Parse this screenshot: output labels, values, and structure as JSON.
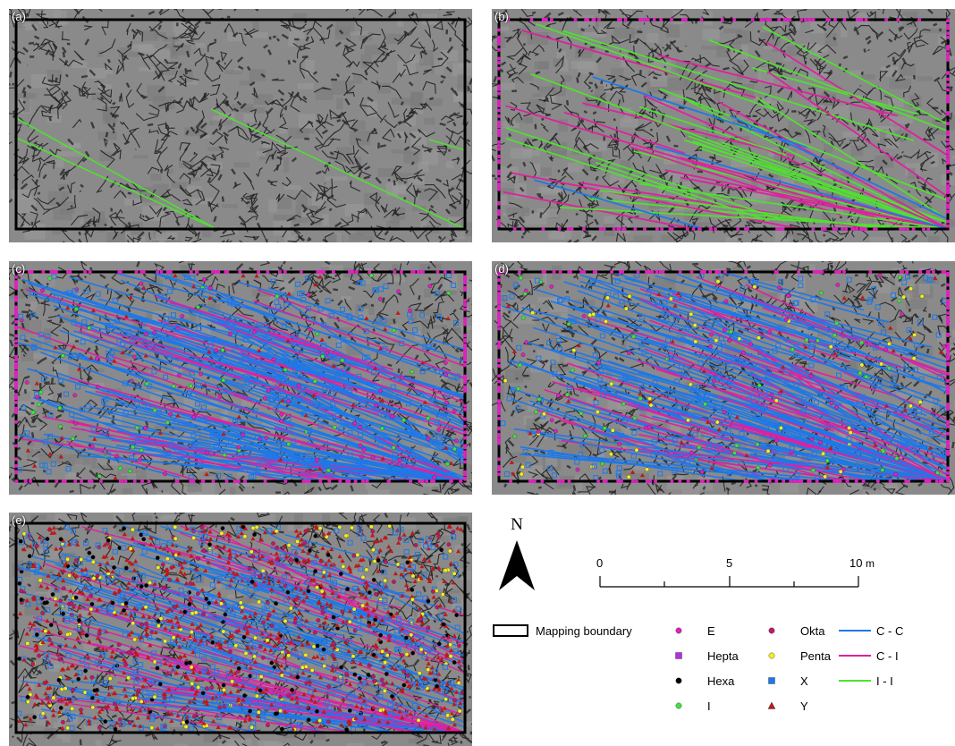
{
  "panels": [
    {
      "label": "(a)"
    },
    {
      "label": "(b)"
    },
    {
      "label": "(c)"
    },
    {
      "label": "(d)"
    },
    {
      "label": "(e)"
    }
  ],
  "north_arrow": {
    "letter": "N"
  },
  "scale_bar": {
    "labels": [
      "0",
      "5",
      "10"
    ],
    "unit": "m"
  },
  "legend": {
    "boundary": "Mapping boundary",
    "nodes": [
      {
        "label": "E",
        "color": "#e020c0",
        "shape": "circle"
      },
      {
        "label": "Hepta",
        "color": "#b030e0",
        "shape": "square"
      },
      {
        "label": "Hexa",
        "color": "#000000",
        "shape": "circle"
      },
      {
        "label": "I",
        "color": "#40e040",
        "shape": "circle"
      },
      {
        "label": "Okta",
        "color": "#c0186a",
        "shape": "circle"
      },
      {
        "label": "Penta",
        "color": "#f0f020",
        "shape": "circle"
      },
      {
        "label": "X",
        "color": "#1e78e8",
        "shape": "square"
      },
      {
        "label": "Y",
        "color": "#c01818",
        "shape": "triangle"
      }
    ],
    "branches": [
      {
        "label": "C - C",
        "color": "#1e78e8"
      },
      {
        "label": "C - I",
        "color": "#e020a0"
      },
      {
        "label": "I - I",
        "color": "#50e030"
      }
    ]
  },
  "colors": {
    "background_gray": "#8a8a8a",
    "boundary": "#000000"
  }
}
